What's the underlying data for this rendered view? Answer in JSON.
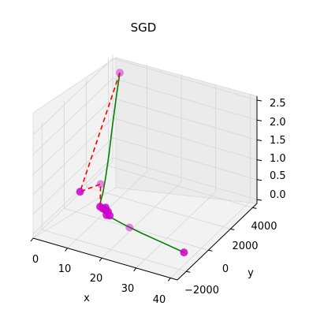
{
  "chart_data": {
    "type": "line",
    "projection": "3d",
    "title": "SGD",
    "xlabel": "x",
    "ylabel": "y",
    "zlabel": "",
    "grid": true,
    "x_ticks": [
      "0",
      "10",
      "20",
      "30",
      "40"
    ],
    "y_ticks": [
      "−2000",
      "0",
      "2000",
      "4000"
    ],
    "z_ticks": [
      "0.0",
      "0.5",
      "1.0",
      "1.5",
      "2.0",
      "2.5"
    ],
    "xlim": [
      0,
      42
    ],
    "ylim": [
      -2800,
      4400
    ],
    "zlim": [
      -0.1,
      2.6
    ],
    "series": [
      {
        "style": "solid",
        "color": "#008000",
        "points": [
          [
            4.0,
            3800,
            2.4
          ],
          [
            4.6,
            3300,
            1.95
          ],
          [
            5.4,
            2700,
            1.4
          ],
          [
            6.3,
            2100,
            0.85
          ],
          [
            7.0,
            1600,
            0.45
          ],
          [
            7.5,
            1200,
            0.18
          ],
          [
            7.6,
            950,
            0.02
          ],
          [
            8.5,
            620,
            -0.01
          ],
          [
            12.0,
            120,
            0.0
          ],
          [
            18.0,
            -200,
            0.0
          ],
          [
            24.0,
            -450,
            0.0
          ],
          [
            31.0,
            -700,
            0.0
          ],
          [
            38.0,
            -960,
            0.0
          ]
        ]
      },
      {
        "style": "dashed",
        "color": "#ff0000",
        "points": [
          [
            4.0,
            3800,
            2.4
          ],
          [
            0.8,
            1200,
            0.02
          ],
          [
            7.6,
            950,
            0.45
          ],
          [
            8.5,
            620,
            -0.01
          ],
          [
            10.5,
            500,
            0.05
          ],
          [
            11.5,
            400,
            0.0
          ],
          [
            12.0,
            120,
            0.0
          ]
        ]
      }
    ],
    "markers": {
      "color": "#cc00cc",
      "points": [
        [
          4.0,
          3800,
          2.4
        ],
        [
          0.8,
          1200,
          0.02
        ],
        [
          7.6,
          950,
          0.45
        ],
        [
          8.5,
          620,
          -0.01
        ],
        [
          9.8,
          450,
          0.02
        ],
        [
          10.5,
          500,
          0.05
        ],
        [
          11.0,
          350,
          0.03
        ],
        [
          11.5,
          400,
          0.0
        ],
        [
          12.0,
          120,
          0.0
        ],
        [
          12.8,
          150,
          0.0
        ],
        [
          20.0,
          -300,
          0.0
        ],
        [
          38.0,
          -960,
          0.0
        ]
      ]
    }
  }
}
